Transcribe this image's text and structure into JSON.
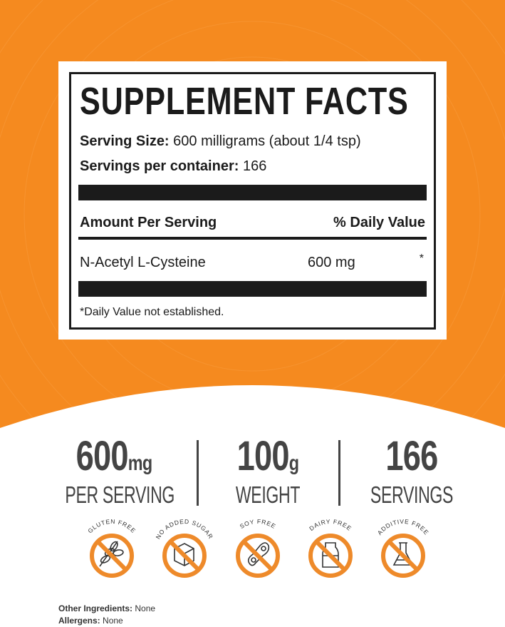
{
  "colors": {
    "orange": "#f58a1f",
    "text": "#1b1b1b",
    "stat_gray": "#444444",
    "badge_orange": "#ee8a2a"
  },
  "facts": {
    "title": "SUPPLEMENT FACTS",
    "serving_size_label": "Serving Size:",
    "serving_size_value": "600 milligrams (about 1/4 tsp)",
    "servings_label": "Servings per container:",
    "servings_value": "166",
    "amount_header": "Amount Per Serving",
    "dv_header": "% Daily Value",
    "ingredient_name": "N-Acetyl L-Cysteine",
    "ingredient_amount": "600 mg",
    "ingredient_dv": "*",
    "footnote": "*Daily Value not established."
  },
  "stats": [
    {
      "value": "600",
      "unit": "mg",
      "label": "PER SERVING"
    },
    {
      "value": "100",
      "unit": "g",
      "label": "WEIGHT"
    },
    {
      "value": "166",
      "unit": "",
      "label": "SERVINGS"
    }
  ],
  "badges": [
    {
      "label": "GLUTEN FREE",
      "icon": "wheat-icon"
    },
    {
      "label": "NO ADDED SUGAR",
      "icon": "sugar-cube-icon"
    },
    {
      "label": "SOY FREE",
      "icon": "soybean-icon"
    },
    {
      "label": "DAIRY FREE",
      "icon": "milk-bottle-icon"
    },
    {
      "label": "ADDITIVE FREE",
      "icon": "flask-icon"
    }
  ],
  "footer": {
    "other_label": "Other Ingredients:",
    "other_value": "None",
    "allergens_label": "Allergens:",
    "allergens_value": "None"
  }
}
